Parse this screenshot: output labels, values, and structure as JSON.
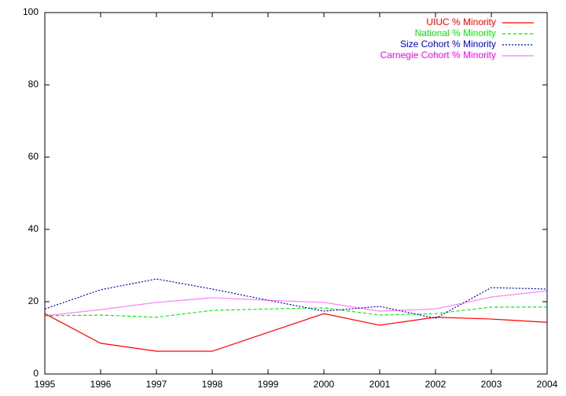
{
  "chart_data": {
    "type": "line",
    "x": [
      1995,
      1996,
      1997,
      1998,
      1999,
      2000,
      2001,
      2002,
      2003,
      2004
    ],
    "series": [
      {
        "name": "UIUC % Minority",
        "color": "#ff0000",
        "dash": "solid",
        "values": [
          16.7,
          8.5,
          6.3,
          6.3,
          11.5,
          16.7,
          13.5,
          15.7,
          15.2,
          14.3
        ]
      },
      {
        "name": "National % Minority",
        "color": "#00ee00",
        "dash": "dashed",
        "values": [
          16.1,
          16.3,
          15.7,
          17.6,
          18.0,
          18.3,
          16.3,
          16.7,
          18.5,
          18.5
        ]
      },
      {
        "name": "Size Cohort % Minority",
        "color": "#0000cc",
        "dash": "dotted",
        "values": [
          18.0,
          23.3,
          26.3,
          23.5,
          20.4,
          17.4,
          18.7,
          15.4,
          23.9,
          23.5
        ]
      },
      {
        "name": "Carnegie Cohort % Minority",
        "color": "#ff00ff",
        "dash": "fine-dotted",
        "values": [
          16.1,
          17.8,
          19.8,
          21.1,
          20.4,
          19.8,
          17.4,
          18.0,
          21.3,
          23.0
        ]
      }
    ],
    "xlim": [
      1995,
      2004
    ],
    "xticks": [
      1995,
      1996,
      1997,
      1998,
      1999,
      2000,
      2001,
      2002,
      2003,
      2004
    ],
    "ylim": [
      0,
      100
    ],
    "yticks": [
      0,
      20,
      40,
      60,
      80,
      100
    ],
    "legend": "top-right"
  }
}
